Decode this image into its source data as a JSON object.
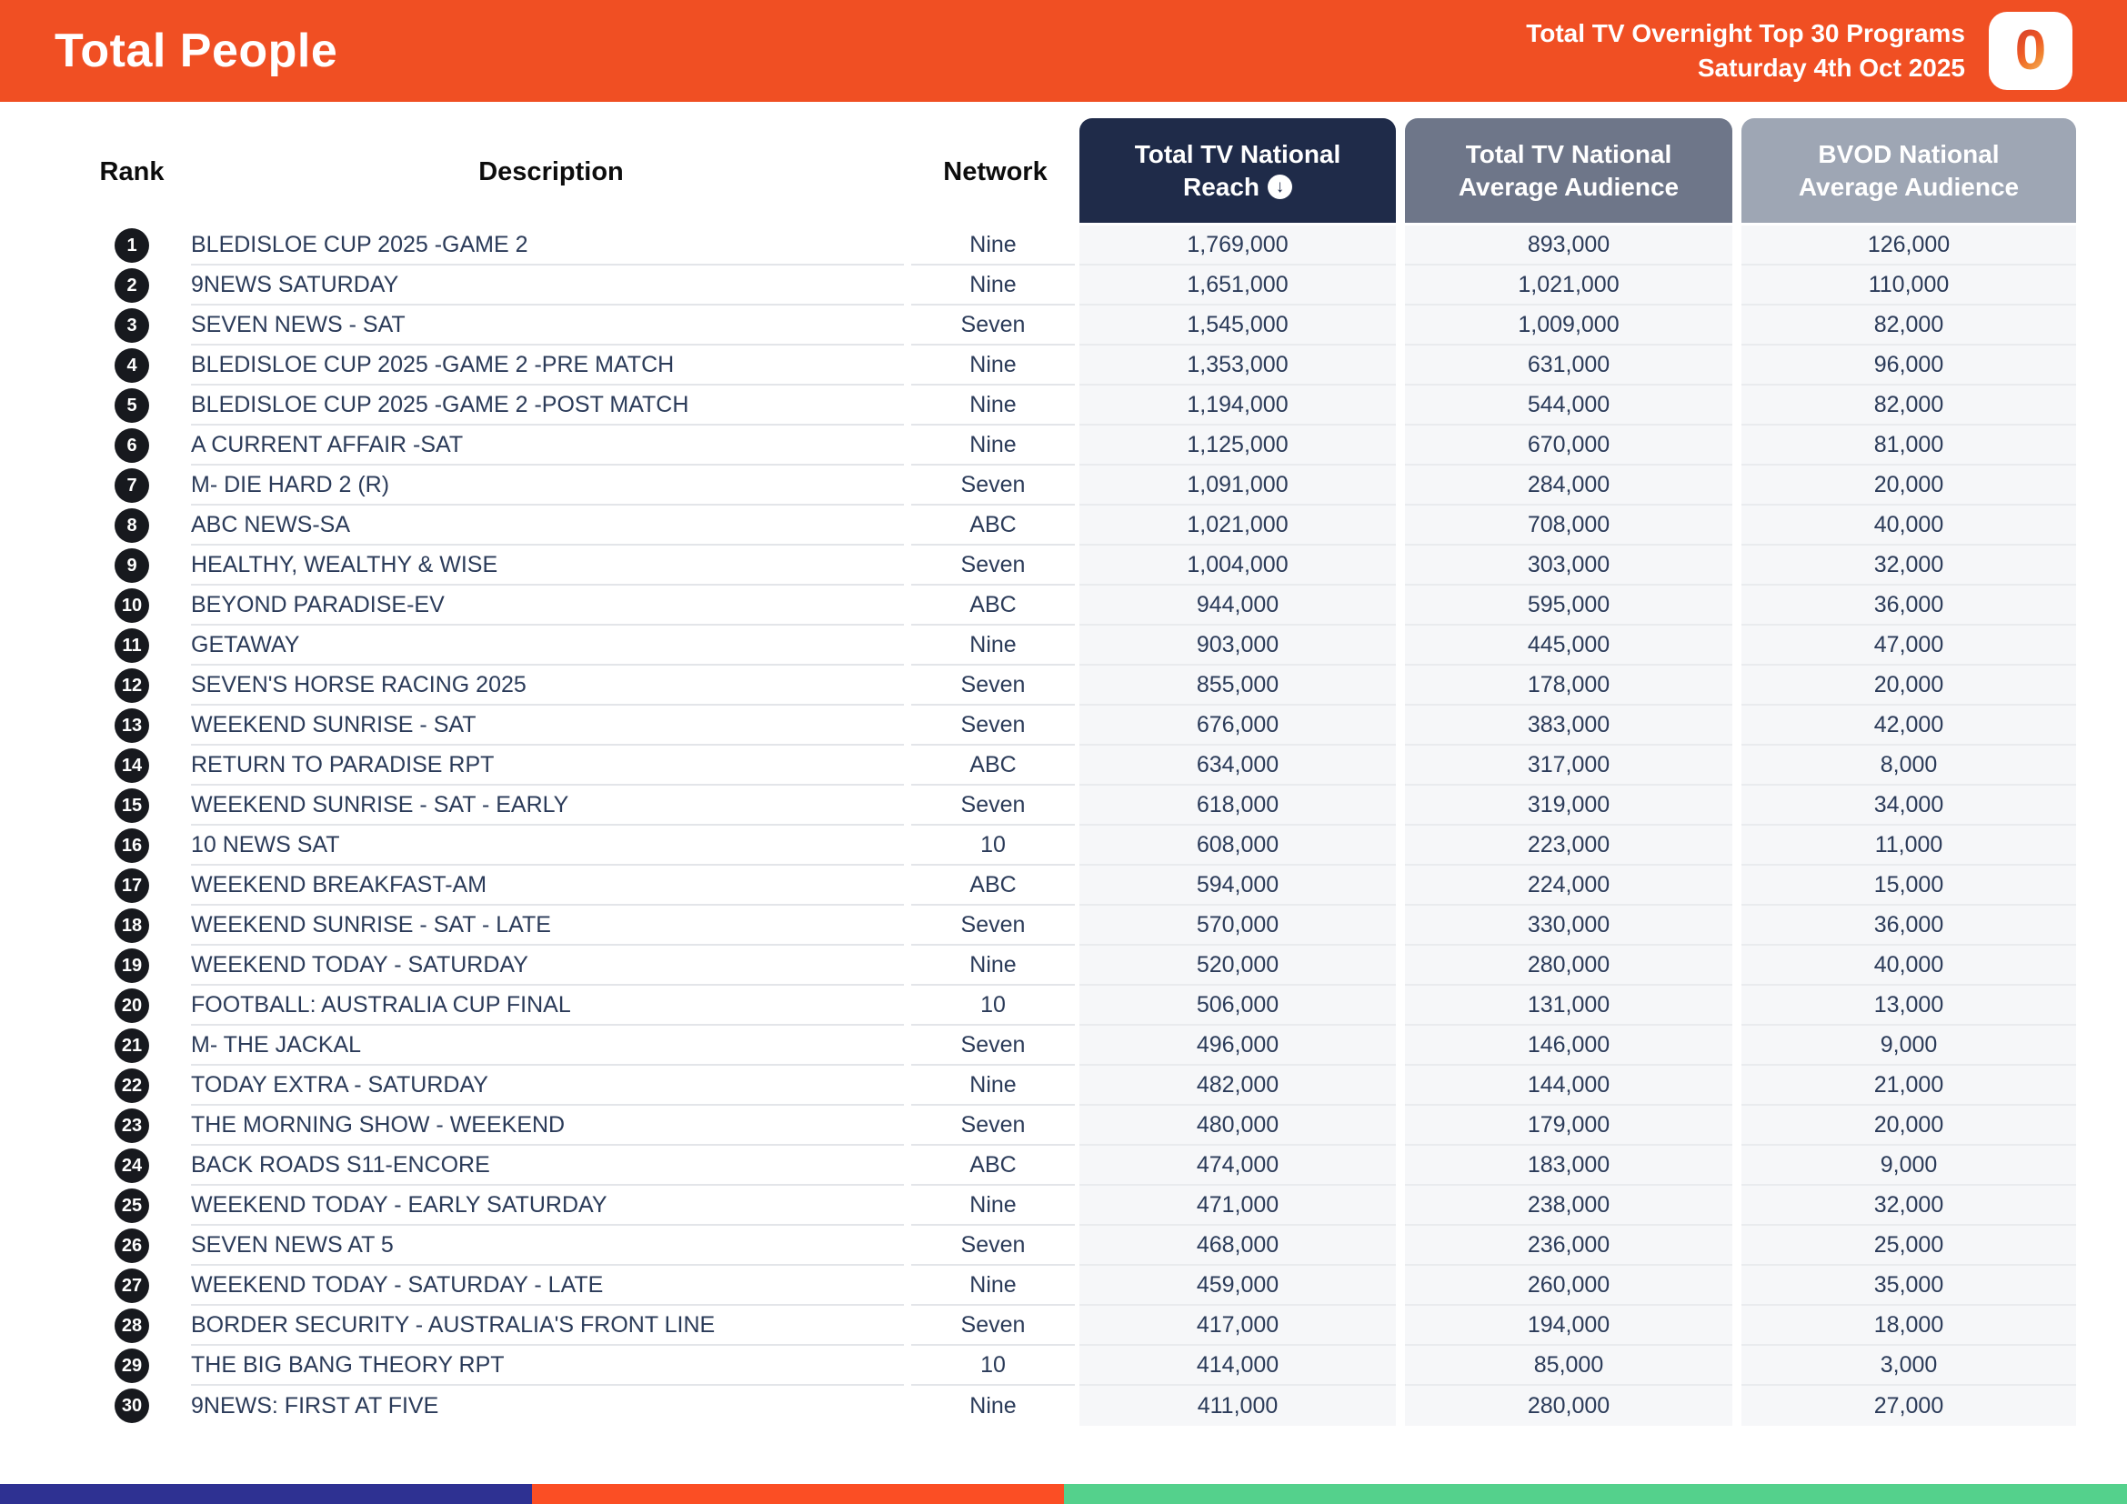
{
  "header": {
    "title": "Total People",
    "subtitle_line1": "Total TV Overnight Top 30 Programs",
    "subtitle_line2": "Saturday 4th Oct 2025",
    "logo_glyph": "0",
    "bg_color": "#F04F23"
  },
  "table": {
    "columns": {
      "rank": "Rank",
      "description": "Description",
      "network": "Network"
    },
    "metric_columns": [
      {
        "key": "reach",
        "line1": "Total TV National",
        "line2": "Reach",
        "sorted": true,
        "sort_icon": "↓",
        "bg": "#1F2B49"
      },
      {
        "key": "avg",
        "line1": "Total TV National",
        "line2": "Average Audience",
        "sorted": false,
        "bg": "#6E7689"
      },
      {
        "key": "bvod",
        "line1": "BVOD National",
        "line2": "Average Audience",
        "sorted": false,
        "bg": "#9EA6B4"
      }
    ],
    "rows": [
      {
        "rank": "1",
        "description": "BLEDISLOE CUP 2025 -GAME 2",
        "network": "Nine",
        "reach": "1,769,000",
        "avg": "893,000",
        "bvod": "126,000"
      },
      {
        "rank": "2",
        "description": "9NEWS SATURDAY",
        "network": "Nine",
        "reach": "1,651,000",
        "avg": "1,021,000",
        "bvod": "110,000"
      },
      {
        "rank": "3",
        "description": "SEVEN NEWS - SAT",
        "network": "Seven",
        "reach": "1,545,000",
        "avg": "1,009,000",
        "bvod": "82,000"
      },
      {
        "rank": "4",
        "description": "BLEDISLOE CUP 2025 -GAME 2 -PRE MATCH",
        "network": "Nine",
        "reach": "1,353,000",
        "avg": "631,000",
        "bvod": "96,000"
      },
      {
        "rank": "5",
        "description": "BLEDISLOE CUP 2025 -GAME 2 -POST MATCH",
        "network": "Nine",
        "reach": "1,194,000",
        "avg": "544,000",
        "bvod": "82,000"
      },
      {
        "rank": "6",
        "description": "A CURRENT AFFAIR -SAT",
        "network": "Nine",
        "reach": "1,125,000",
        "avg": "670,000",
        "bvod": "81,000"
      },
      {
        "rank": "7",
        "description": "M- DIE HARD 2 (R)",
        "network": "Seven",
        "reach": "1,091,000",
        "avg": "284,000",
        "bvod": "20,000"
      },
      {
        "rank": "8",
        "description": "ABC NEWS-SA",
        "network": "ABC",
        "reach": "1,021,000",
        "avg": "708,000",
        "bvod": "40,000"
      },
      {
        "rank": "9",
        "description": "HEALTHY, WEALTHY & WISE",
        "network": "Seven",
        "reach": "1,004,000",
        "avg": "303,000",
        "bvod": "32,000"
      },
      {
        "rank": "10",
        "description": "BEYOND PARADISE-EV",
        "network": "ABC",
        "reach": "944,000",
        "avg": "595,000",
        "bvod": "36,000"
      },
      {
        "rank": "11",
        "description": "GETAWAY",
        "network": "Nine",
        "reach": "903,000",
        "avg": "445,000",
        "bvod": "47,000"
      },
      {
        "rank": "12",
        "description": "SEVEN'S HORSE RACING 2025",
        "network": "Seven",
        "reach": "855,000",
        "avg": "178,000",
        "bvod": "20,000"
      },
      {
        "rank": "13",
        "description": "WEEKEND SUNRISE - SAT",
        "network": "Seven",
        "reach": "676,000",
        "avg": "383,000",
        "bvod": "42,000"
      },
      {
        "rank": "14",
        "description": "RETURN TO PARADISE RPT",
        "network": "ABC",
        "reach": "634,000",
        "avg": "317,000",
        "bvod": "8,000"
      },
      {
        "rank": "15",
        "description": "WEEKEND SUNRISE - SAT - EARLY",
        "network": "Seven",
        "reach": "618,000",
        "avg": "319,000",
        "bvod": "34,000"
      },
      {
        "rank": "16",
        "description": "10 NEWS SAT",
        "network": "10",
        "reach": "608,000",
        "avg": "223,000",
        "bvod": "11,000"
      },
      {
        "rank": "17",
        "description": "WEEKEND BREAKFAST-AM",
        "network": "ABC",
        "reach": "594,000",
        "avg": "224,000",
        "bvod": "15,000"
      },
      {
        "rank": "18",
        "description": "WEEKEND SUNRISE - SAT - LATE",
        "network": "Seven",
        "reach": "570,000",
        "avg": "330,000",
        "bvod": "36,000"
      },
      {
        "rank": "19",
        "description": "WEEKEND TODAY - SATURDAY",
        "network": "Nine",
        "reach": "520,000",
        "avg": "280,000",
        "bvod": "40,000"
      },
      {
        "rank": "20",
        "description": "FOOTBALL: AUSTRALIA CUP FINAL",
        "network": "10",
        "reach": "506,000",
        "avg": "131,000",
        "bvod": "13,000"
      },
      {
        "rank": "21",
        "description": "M- THE JACKAL",
        "network": "Seven",
        "reach": "496,000",
        "avg": "146,000",
        "bvod": "9,000"
      },
      {
        "rank": "22",
        "description": "TODAY EXTRA - SATURDAY",
        "network": "Nine",
        "reach": "482,000",
        "avg": "144,000",
        "bvod": "21,000"
      },
      {
        "rank": "23",
        "description": "THE MORNING SHOW - WEEKEND",
        "network": "Seven",
        "reach": "480,000",
        "avg": "179,000",
        "bvod": "20,000"
      },
      {
        "rank": "24",
        "description": "BACK ROADS S11-ENCORE",
        "network": "ABC",
        "reach": "474,000",
        "avg": "183,000",
        "bvod": "9,000"
      },
      {
        "rank": "25",
        "description": "WEEKEND TODAY - EARLY SATURDAY",
        "network": "Nine",
        "reach": "471,000",
        "avg": "238,000",
        "bvod": "32,000"
      },
      {
        "rank": "26",
        "description": "SEVEN NEWS AT 5",
        "network": "Seven",
        "reach": "468,000",
        "avg": "236,000",
        "bvod": "25,000"
      },
      {
        "rank": "27",
        "description": "WEEKEND TODAY - SATURDAY - LATE",
        "network": "Nine",
        "reach": "459,000",
        "avg": "260,000",
        "bvod": "35,000"
      },
      {
        "rank": "28",
        "description": "BORDER SECURITY - AUSTRALIA'S FRONT LINE",
        "network": "Seven",
        "reach": "417,000",
        "avg": "194,000",
        "bvod": "18,000"
      },
      {
        "rank": "29",
        "description": "THE BIG BANG THEORY RPT",
        "network": "10",
        "reach": "414,000",
        "avg": "85,000",
        "bvod": "3,000"
      },
      {
        "rank": "30",
        "description": "9NEWS: FIRST AT FIVE",
        "network": "Nine",
        "reach": "411,000",
        "avg": "280,000",
        "bvod": "27,000"
      }
    ]
  },
  "footer": {
    "segments": [
      {
        "name": "blue",
        "color": "#2E3192",
        "width_pct": 25
      },
      {
        "name": "orange",
        "color": "#FB4E24",
        "width_pct": 25
      },
      {
        "name": "green",
        "color": "#54D18C",
        "width_pct": 50
      }
    ]
  },
  "colors": {
    "banner_orange": "#F04F23",
    "reach_header": "#1F2B49",
    "avg_header": "#6E7689",
    "bvod_header": "#9EA6B4",
    "row_text_navy": "#2B3B59",
    "metric_cell_bg": "#F6F7F9",
    "rank_badge": "#17191E"
  }
}
